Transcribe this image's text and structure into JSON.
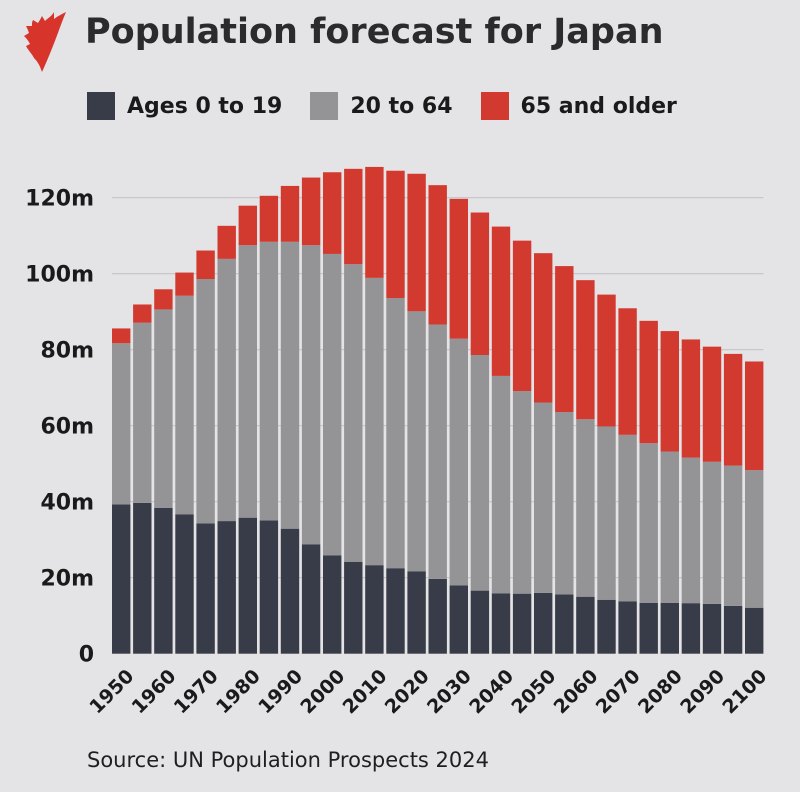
{
  "header": {
    "title": "Population forecast for Japan",
    "logo": "sbs-logo-icon"
  },
  "legend": [
    {
      "label": "Ages 0 to 19",
      "color": "#383c48"
    },
    {
      "label": "20 to 64",
      "color": "#949497"
    },
    {
      "label": "65 and older",
      "color": "#d23a30"
    }
  ],
  "source": "Source: UN Population Prospects 2024",
  "chart_data": {
    "type": "bar",
    "stacked": true,
    "title": "Population forecast for Japan",
    "xlabel": "",
    "ylabel": "",
    "ylim": [
      0,
      130
    ],
    "yticks": [
      0,
      20,
      40,
      60,
      80,
      100,
      120
    ],
    "ytick_labels": [
      "0",
      "20m",
      "40m",
      "60m",
      "80m",
      "100m",
      "120m"
    ],
    "xtick_labels": [
      "1950",
      "1960",
      "1970",
      "1980",
      "1990",
      "2000",
      "2010",
      "2020",
      "2030",
      "2040",
      "2050",
      "2060",
      "2070",
      "2080",
      "2090",
      "2100"
    ],
    "grid": true,
    "legend_position": "top-left",
    "units": "millions",
    "categories": [
      "1950",
      "1955",
      "1960",
      "1965",
      "1970",
      "1975",
      "1980",
      "1985",
      "1990",
      "1995",
      "2000",
      "2005",
      "2010",
      "2015",
      "2020",
      "2025",
      "2030",
      "2035",
      "2040",
      "2045",
      "2050",
      "2055",
      "2060",
      "2065",
      "2070",
      "2075",
      "2080",
      "2085",
      "2090",
      "2095",
      "2100"
    ],
    "series": [
      {
        "name": "Ages 0 to 19",
        "color": "#383c48",
        "values": [
          39.3,
          39.7,
          38.4,
          36.7,
          34.3,
          34.9,
          35.8,
          35.1,
          32.9,
          28.8,
          25.9,
          24.2,
          23.3,
          22.5,
          21.7,
          19.7,
          18.0,
          16.6,
          15.9,
          15.8,
          16.0,
          15.6,
          15.0,
          14.2,
          13.8,
          13.4,
          13.4,
          13.3,
          13.1,
          12.6,
          12.1
        ]
      },
      {
        "name": "20 to 64",
        "color": "#949497",
        "values": [
          42.4,
          47.4,
          52.2,
          57.5,
          64.3,
          69.0,
          71.7,
          73.3,
          75.5,
          78.7,
          79.3,
          78.3,
          75.6,
          71.1,
          68.4,
          66.9,
          64.9,
          62.0,
          57.2,
          53.3,
          50.1,
          48.0,
          46.7,
          45.6,
          43.8,
          42.0,
          39.8,
          38.3,
          37.4,
          36.9,
          36.2
        ]
      },
      {
        "name": "65 and older",
        "color": "#d23a30",
        "values": [
          3.9,
          4.8,
          5.3,
          6.1,
          7.5,
          8.7,
          10.4,
          12.1,
          14.7,
          17.8,
          21.5,
          25.1,
          29.2,
          33.5,
          36.2,
          36.7,
          36.8,
          37.5,
          39.3,
          39.6,
          39.3,
          38.4,
          36.6,
          34.7,
          33.3,
          32.2,
          31.7,
          31.1,
          30.3,
          29.4,
          28.6
        ]
      }
    ]
  }
}
